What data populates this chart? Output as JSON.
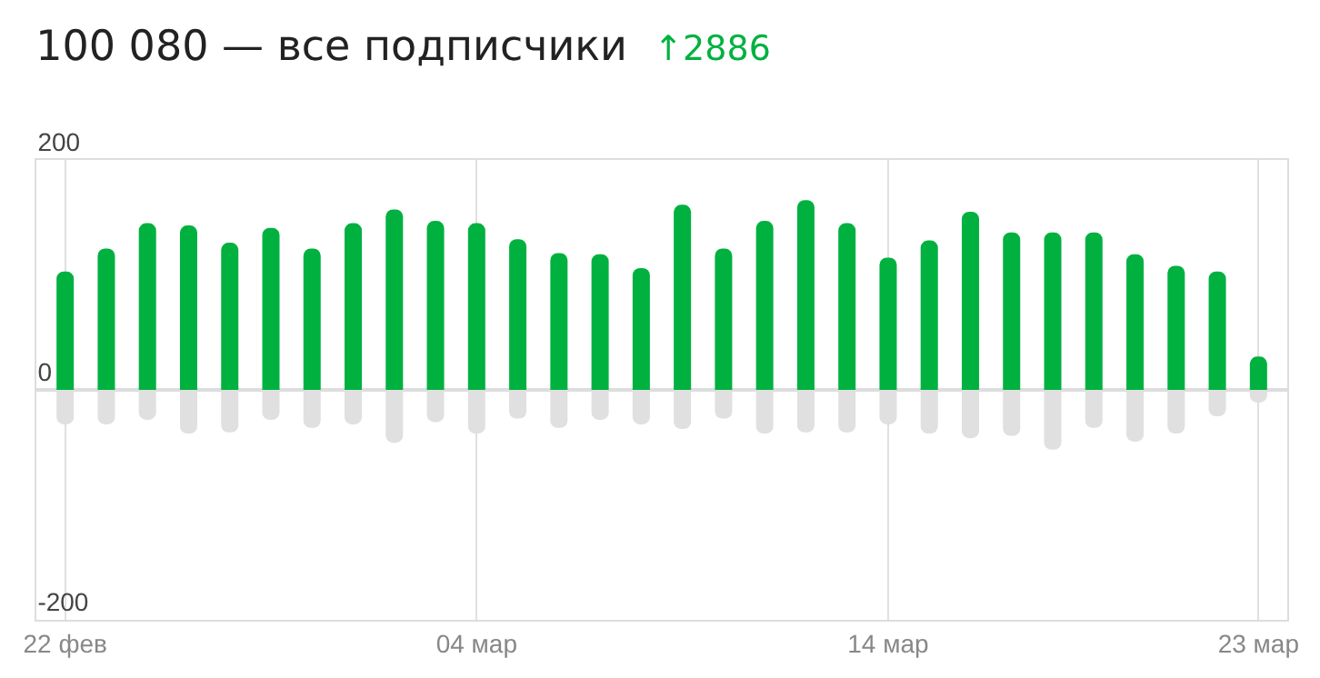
{
  "chart_data": {
    "type": "bar",
    "title": "100 080 — все подписчики",
    "subtitle": "↑2886",
    "categories": [
      "22 фев",
      null,
      null,
      null,
      null,
      null,
      null,
      null,
      null,
      null,
      "04 мар",
      null,
      null,
      null,
      null,
      null,
      null,
      null,
      null,
      null,
      "14 мар",
      null,
      null,
      null,
      null,
      null,
      null,
      null,
      null,
      "23 мар"
    ],
    "series": [
      {
        "color": "#00b140",
        "values": [
          103,
          123,
          145,
          143,
          128,
          141,
          123,
          145,
          157,
          147,
          145,
          131,
          119,
          118,
          106,
          161,
          123,
          147,
          165,
          145,
          115,
          130,
          155,
          137,
          137,
          137,
          118,
          108,
          103,
          29
        ]
      },
      {
        "color": "#e0e0e0",
        "values": [
          -30,
          -30,
          -26,
          -38,
          -37,
          -26,
          -33,
          -30,
          -46,
          -28,
          -38,
          -25,
          -33,
          -26,
          -30,
          -34,
          -25,
          -38,
          -37,
          -37,
          -30,
          -38,
          -42,
          -40,
          -52,
          -33,
          -45,
          -38,
          -23,
          -11
        ]
      }
    ],
    "stacked": true,
    "ylim": [
      -200,
      200
    ],
    "yticks": [
      -200,
      0,
      200
    ],
    "grid": "x"
  }
}
